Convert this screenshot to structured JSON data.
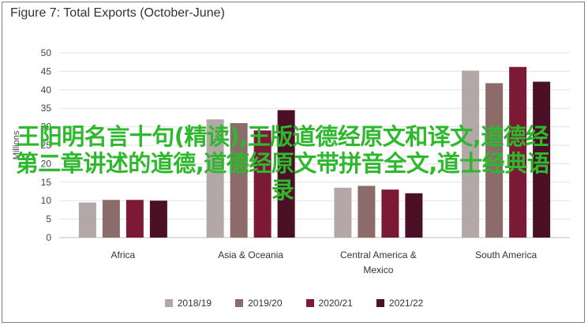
{
  "chart_data": {
    "type": "bar",
    "title": "Figure 7: Total Exports (October-June)",
    "ylabel": "Millions",
    "xlabel": "",
    "ylim": [
      0,
      50
    ],
    "yticks": [
      0,
      5,
      10,
      15,
      20,
      25,
      30,
      35,
      40,
      45,
      50
    ],
    "grid": true,
    "legend_position": "bottom",
    "categories": [
      "Africa",
      "Asia & Oceania",
      "Central America & Mexico",
      "South America"
    ],
    "category_lines": [
      [
        "Africa"
      ],
      [
        "Asia & Oceania"
      ],
      [
        "Central America &",
        "Mexico"
      ],
      [
        "South America"
      ]
    ],
    "series": [
      {
        "name": "2018/19",
        "color": "#b3a7a7",
        "values": [
          9.5,
          32,
          13.5,
          45.2
        ]
      },
      {
        "name": "2019/20",
        "color": "#8c6b6b",
        "values": [
          10.2,
          31,
          14,
          41.8
        ]
      },
      {
        "name": "2020/21",
        "color": "#7c1a36",
        "values": [
          10.2,
          29,
          13,
          46.2
        ]
      },
      {
        "name": "2021/22",
        "color": "#4b1025",
        "values": [
          10,
          34.5,
          12,
          42.2
        ]
      }
    ]
  },
  "overlay_text": "王阳明名言十句(精读),王版道德经原文和译文,道德经第二章讲述的道德,道德经原文带拼音全文,道士经典语录"
}
